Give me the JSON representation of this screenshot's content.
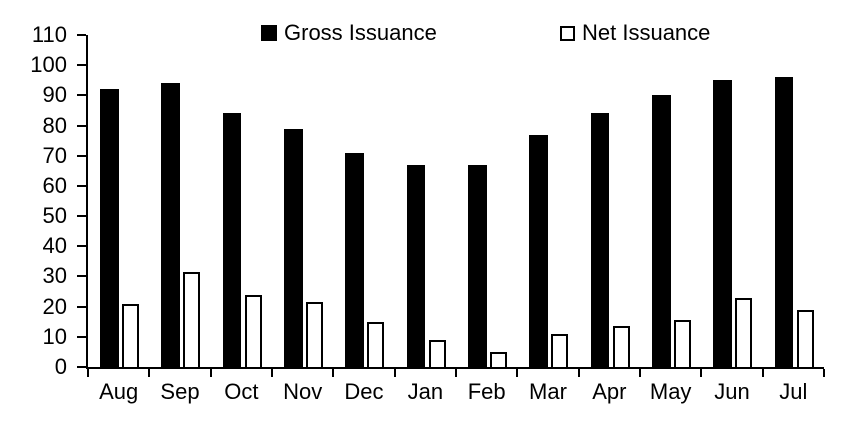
{
  "chart_data": {
    "type": "bar",
    "title": "",
    "categories": [
      "Aug",
      "Sep",
      "Oct",
      "Nov",
      "Dec",
      "Jan",
      "Feb",
      "Mar",
      "Apr",
      "May",
      "Jun",
      "Jul"
    ],
    "series": [
      {
        "name": "Gross Issuance",
        "fill": "#000000",
        "style": "filled",
        "values": [
          92,
          94,
          84,
          79,
          71,
          67,
          67,
          77,
          84,
          90,
          95,
          96
        ]
      },
      {
        "name": "Net Issuance",
        "fill": "#ffffff",
        "style": "outlined",
        "values": [
          21,
          31.5,
          24,
          21.5,
          15,
          9,
          5,
          11,
          13.5,
          15.5,
          23,
          19
        ]
      }
    ],
    "xlabel": "",
    "ylabel": "",
    "ylim": [
      0,
      110
    ],
    "ytick_step": 10,
    "grid": false,
    "legend_position": "top"
  },
  "colors": {
    "foreground": "#000000",
    "background": "#ffffff"
  }
}
